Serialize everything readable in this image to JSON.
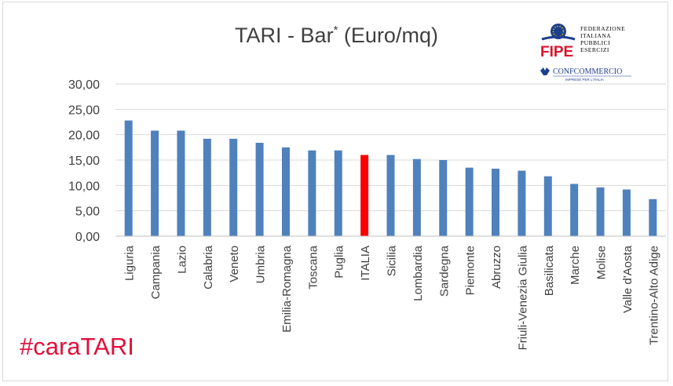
{
  "chart_data": {
    "type": "bar",
    "title": "TARI - Bar",
    "title_superscript": "*",
    "title_unit": "(Euro/mq)",
    "categories": [
      "Liguria",
      "Campania",
      "Lazio",
      "Calabria",
      "Veneto",
      "Umbria",
      "Emilia-Romagna",
      "Toscana",
      "Puglia",
      "ITALIA",
      "Sicilia",
      "Lombardia",
      "Sardegna",
      "Piemonte",
      "Abruzzo",
      "Friuli-Venezia Giulia",
      "Basilicata",
      "Marche",
      "Molise",
      "Valle d'Aosta",
      "Trentino-Alto Adige"
    ],
    "values": [
      22.8,
      20.8,
      20.8,
      19.2,
      19.2,
      18.4,
      17.5,
      16.9,
      16.9,
      16.0,
      16.0,
      15.2,
      15.0,
      13.5,
      13.3,
      12.9,
      11.8,
      10.3,
      9.6,
      9.2,
      7.3
    ],
    "highlight_category": "ITALIA",
    "colors": {
      "bar": "#4f81bd",
      "highlight": "#ff0000",
      "grid": "#d9d9d9"
    },
    "ylim": [
      0,
      30
    ],
    "yticks": [
      "0,00",
      "5,00",
      "10,00",
      "15,00",
      "20,00",
      "25,00",
      "30,00"
    ],
    "grid": true,
    "legend": "none"
  },
  "hashtag": "#caraTARI",
  "logos": {
    "fipe_lines": [
      "FEDERAZIONE",
      "ITALIANA",
      "PUBBLICI",
      "ESERCIZI"
    ],
    "fipe_word": "FIPE",
    "confcommercio": "CONFCOMMERCIO",
    "confcommercio_tagline": "IMPRESE PER L'ITALIA"
  }
}
